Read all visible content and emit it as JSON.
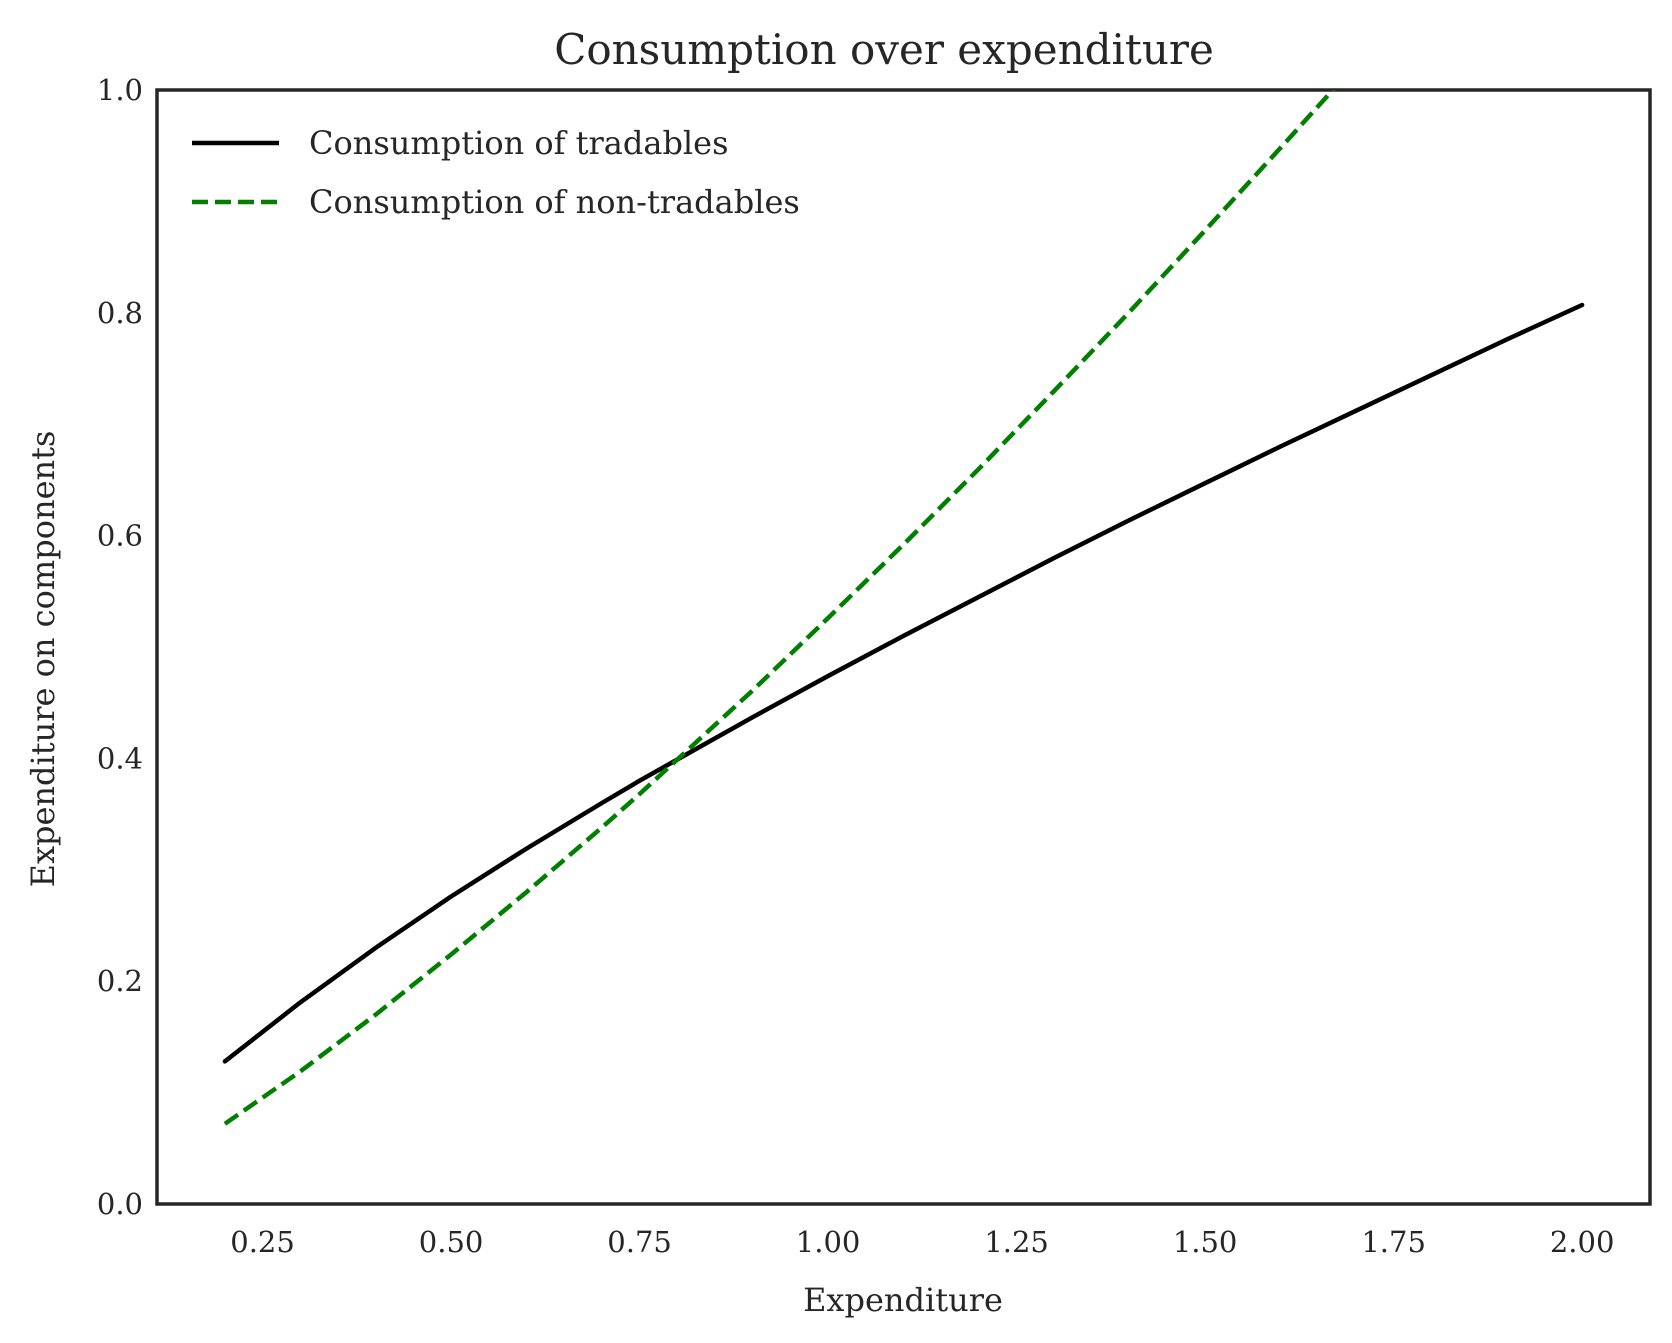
{
  "chart_data": {
    "type": "line",
    "title": "Consumption over expenditure",
    "xlabel": "Expenditure",
    "ylabel": "Expenditure on components",
    "xlim": [
      0.11,
      2.09
    ],
    "ylim": [
      0.0,
      1.0
    ],
    "xticks": [
      "0.25",
      "0.50",
      "0.75",
      "1.00",
      "1.25",
      "1.50",
      "1.75",
      "2.00"
    ],
    "yticks": [
      "0.0",
      "0.2",
      "0.4",
      "0.6",
      "0.8",
      "1.0"
    ],
    "grid": false,
    "legend_position": "top-left",
    "series": [
      {
        "name": "Consumption of tradables",
        "color": "#000000",
        "style": "solid",
        "x": [
          0.2,
          0.3,
          0.4,
          0.5,
          0.6,
          0.7,
          0.75,
          0.8,
          0.9,
          1.0,
          1.1,
          1.2,
          1.3,
          1.4,
          1.5,
          1.6,
          1.7,
          1.8,
          1.9,
          2.0
        ],
        "y": [
          0.128,
          0.181,
          0.23,
          0.276,
          0.319,
          0.36,
          0.38,
          0.399,
          0.437,
          0.474,
          0.51,
          0.545,
          0.58,
          0.614,
          0.647,
          0.68,
          0.712,
          0.744,
          0.776,
          0.807
        ]
      },
      {
        "name": "Consumption of non-tradables",
        "color": "#007f00",
        "style": "dashed",
        "x": [
          0.2,
          0.3,
          0.4,
          0.5,
          0.6,
          0.7,
          0.75,
          0.8,
          0.9,
          1.0,
          1.1,
          1.2,
          1.3,
          1.4,
          1.5,
          1.6,
          1.7,
          1.75
        ],
        "y": [
          0.072,
          0.119,
          0.17,
          0.224,
          0.28,
          0.338,
          0.368,
          0.399,
          0.461,
          0.526,
          0.592,
          0.66,
          0.73,
          0.801,
          0.874,
          0.948,
          1.023,
          1.061
        ]
      }
    ]
  }
}
